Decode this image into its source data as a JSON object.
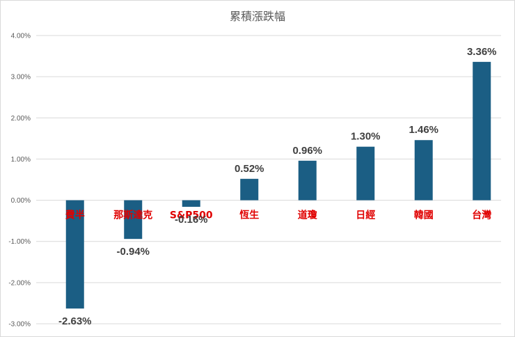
{
  "chart_data": {
    "type": "bar",
    "title": "累積漲跌幅",
    "categories": [
      "費半",
      "那斯達克",
      "S&P500",
      "恆生",
      "道瓊",
      "日經",
      "韓國",
      "台灣"
    ],
    "values": [
      -2.63,
      -0.94,
      -0.16,
      0.52,
      0.96,
      1.3,
      1.46,
      3.36
    ],
    "data_labels": [
      "-2.63%",
      "-0.94%",
      "-0.16%",
      "0.52%",
      "0.96%",
      "1.30%",
      "1.46%",
      "3.36%"
    ],
    "y_ticks": [
      4,
      3,
      2,
      1,
      0,
      -1,
      -2,
      -3
    ],
    "y_tick_labels": [
      "4.00%",
      "3.00%",
      "2.00%",
      "1.00%",
      "0.00%",
      "-1.00%",
      "-2.00%",
      "-3.00%"
    ],
    "ylim": [
      -3,
      4
    ],
    "grid": true,
    "legend": "none",
    "bar_color": "#1b5e84",
    "category_label_color": "#e00000"
  }
}
